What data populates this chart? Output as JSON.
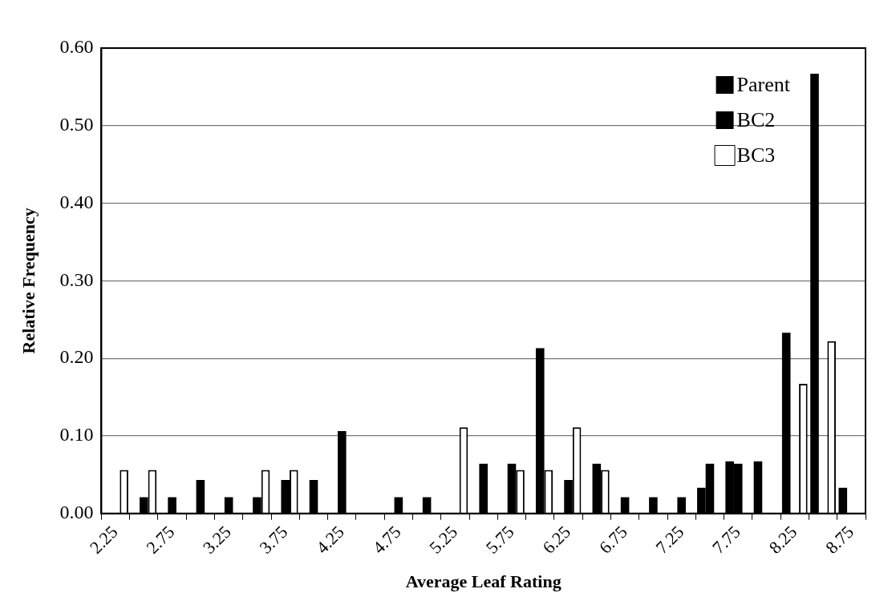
{
  "chart_data": {
    "type": "bar",
    "xlabel": "Average Leaf Rating",
    "ylabel": "Relative Frequency",
    "categories": [
      "2.25",
      null,
      "2.75",
      null,
      "3.25",
      null,
      "3.75",
      null,
      "4.25",
      null,
      "4.75",
      null,
      "5.25",
      null,
      "5.75",
      null,
      "6.25",
      null,
      "6.75",
      null,
      "7.25",
      null,
      "7.75",
      null,
      "8.25",
      null,
      "8.75"
    ],
    "series": [
      {
        "name": "Parent",
        "color": "#000000",
        "values": [
          null,
          null,
          null,
          null,
          null,
          null,
          null,
          null,
          null,
          null,
          null,
          null,
          null,
          null,
          null,
          null,
          null,
          null,
          null,
          null,
          null,
          0.033,
          0.067,
          0.067,
          0.233,
          0.567,
          0.033
        ]
      },
      {
        "name": "BC2",
        "color": "#000000",
        "values": [
          null,
          0.021,
          0.021,
          0.043,
          0.021,
          0.021,
          0.043,
          0.043,
          0.106,
          null,
          0.021,
          0.021,
          null,
          0.064,
          0.064,
          0.213,
          0.043,
          0.064,
          0.021,
          0.021,
          0.021,
          0.064,
          0.064,
          null,
          null,
          null,
          null
        ]
      },
      {
        "name": "BC3",
        "color": "#ffffff",
        "values": [
          0.056,
          0.056,
          null,
          null,
          null,
          0.056,
          0.056,
          null,
          null,
          null,
          null,
          null,
          0.111,
          null,
          0.056,
          0.056,
          0.111,
          0.056,
          null,
          null,
          null,
          null,
          null,
          null,
          0.167,
          0.222,
          null
        ]
      }
    ],
    "ylim": [
      0,
      0.6
    ],
    "yticks": [
      {
        "value": 0,
        "label": "0.00"
      },
      {
        "value": 0.1,
        "label": "0.10"
      },
      {
        "value": 0.2,
        "label": "0.20"
      },
      {
        "value": 0.3,
        "label": "0.30"
      },
      {
        "value": 0.4,
        "label": "0.40"
      },
      {
        "value": 0.5,
        "label": "0.50"
      },
      {
        "value": 0.6,
        "label": "0.60"
      }
    ],
    "grid": "y",
    "legend": "top right"
  }
}
